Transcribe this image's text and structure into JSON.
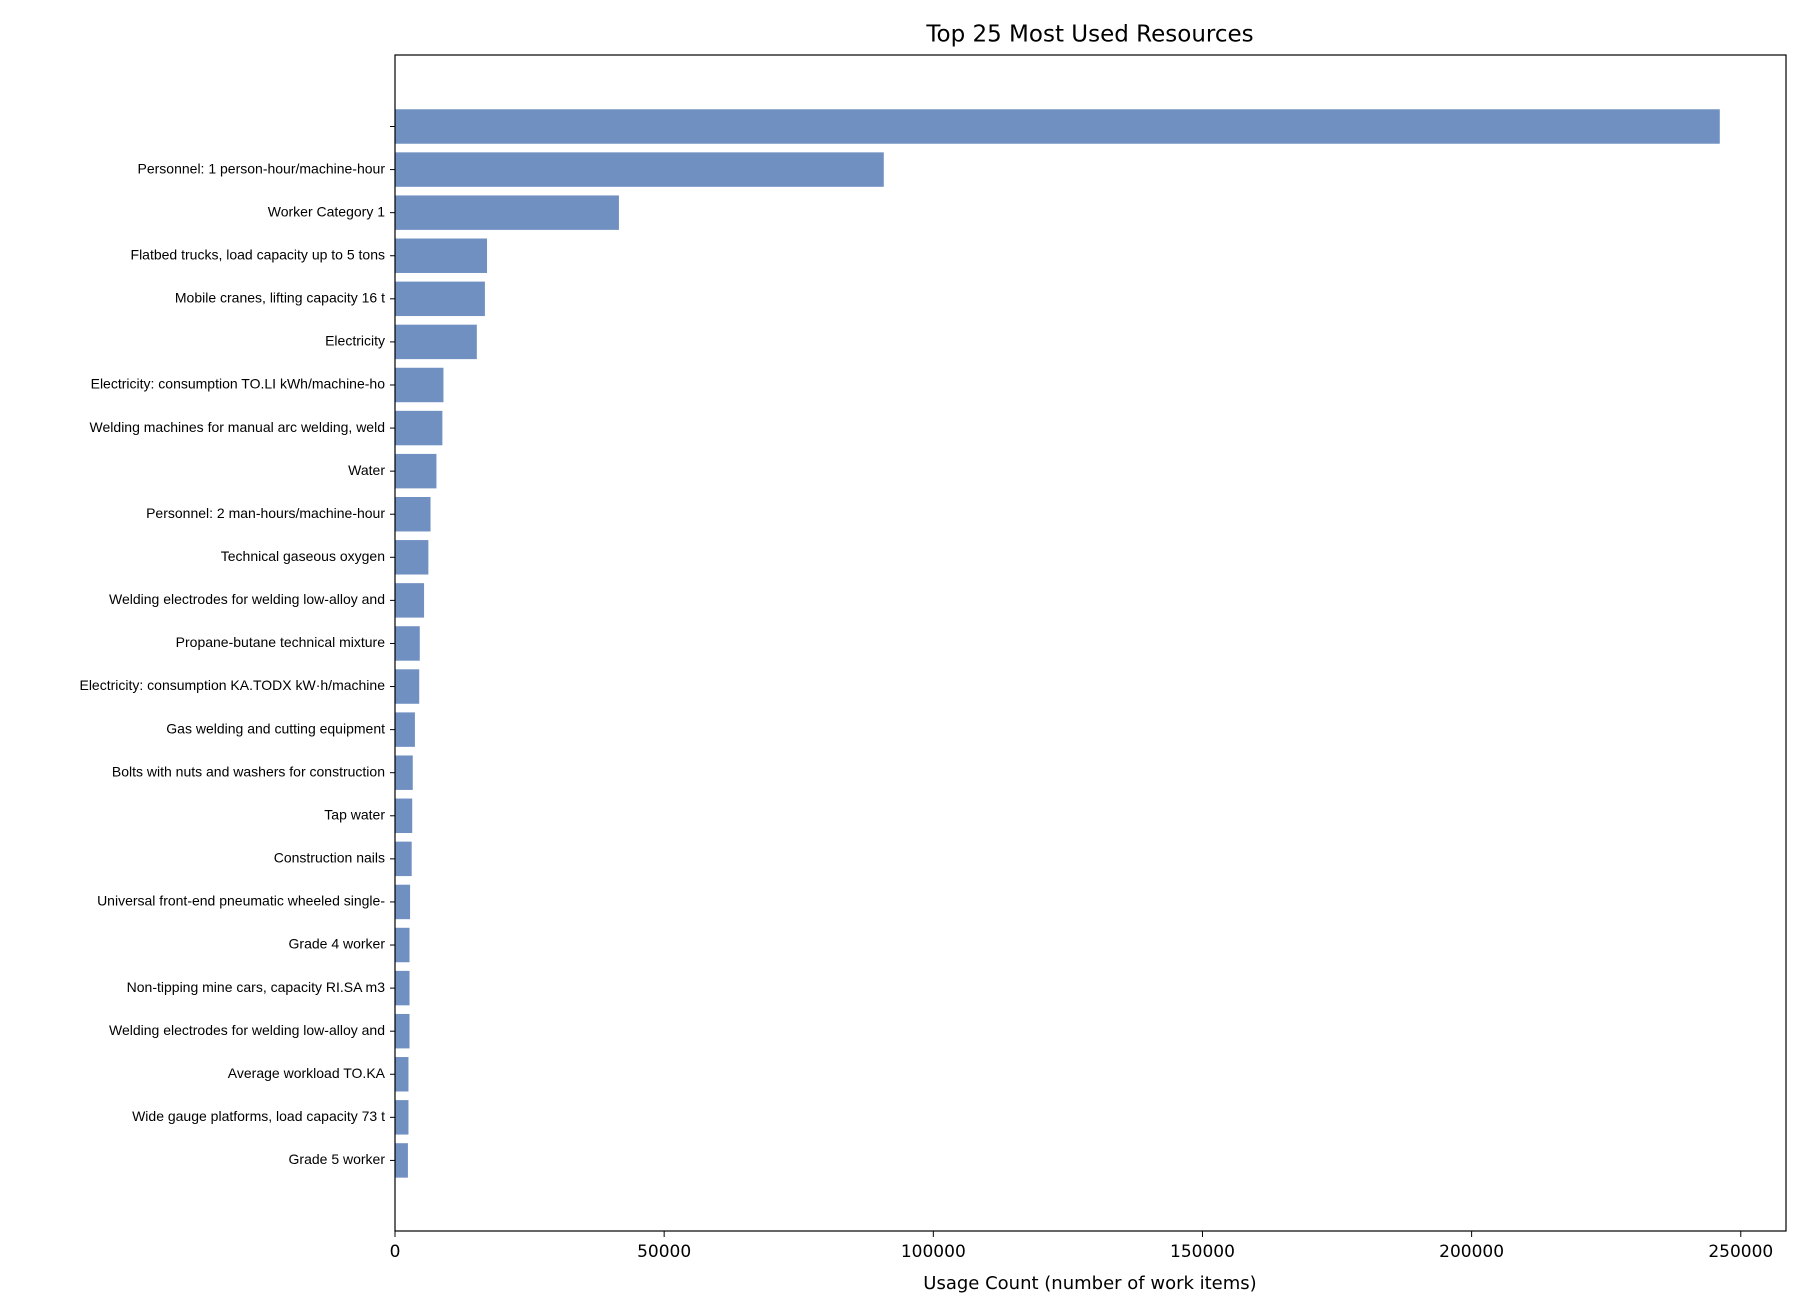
{
  "chart_data": {
    "type": "barh",
    "title": "Top 25 Most Used Resources",
    "x_label": "Usage Count (number of work items)",
    "categories": [
      null,
      "Personnel: 1 person-hour/machine-hour",
      "Worker Category 1",
      "Flatbed trucks, load capacity up to 5 tons",
      "Mobile cranes, lifting capacity 16 t",
      "Electricity",
      "Electricity: consumption TO.LI kWh/machine-ho",
      "Welding machines for manual arc welding, weld",
      "Water",
      "Personnel: 2 man-hours/machine-hour",
      "Technical gaseous oxygen",
      "Welding electrodes for welding low-alloy and ",
      "Propane-butane technical mixture",
      "Electricity: consumption KA.TODX kW·h/machine",
      "Gas welding and cutting equipment",
      "Bolts with nuts and washers for construction",
      "Tap water",
      "Construction nails",
      "Universal front-end pneumatic wheeled single-",
      "Grade 4 worker",
      "Non-tipping mine cars, capacity RI.SA m3",
      "Welding electrodes for welding low-alloy and ",
      "Average workload TO.KA",
      "Wide gauge platforms, load capacity 73 t",
      "Grade 5 worker"
    ],
    "values": [
      246100,
      90800,
      41600,
      17100,
      16700,
      15200,
      9000,
      8800,
      7700,
      6600,
      6200,
      5400,
      4600,
      4500,
      3700,
      3300,
      3200,
      3100,
      2800,
      2700,
      2700,
      2700,
      2500,
      2500,
      2400
    ],
    "color": "#7190c2",
    "xlim": [
      0,
      258400
    ],
    "xticks": [
      0,
      50000,
      100000,
      150000,
      200000,
      250000
    ]
  }
}
